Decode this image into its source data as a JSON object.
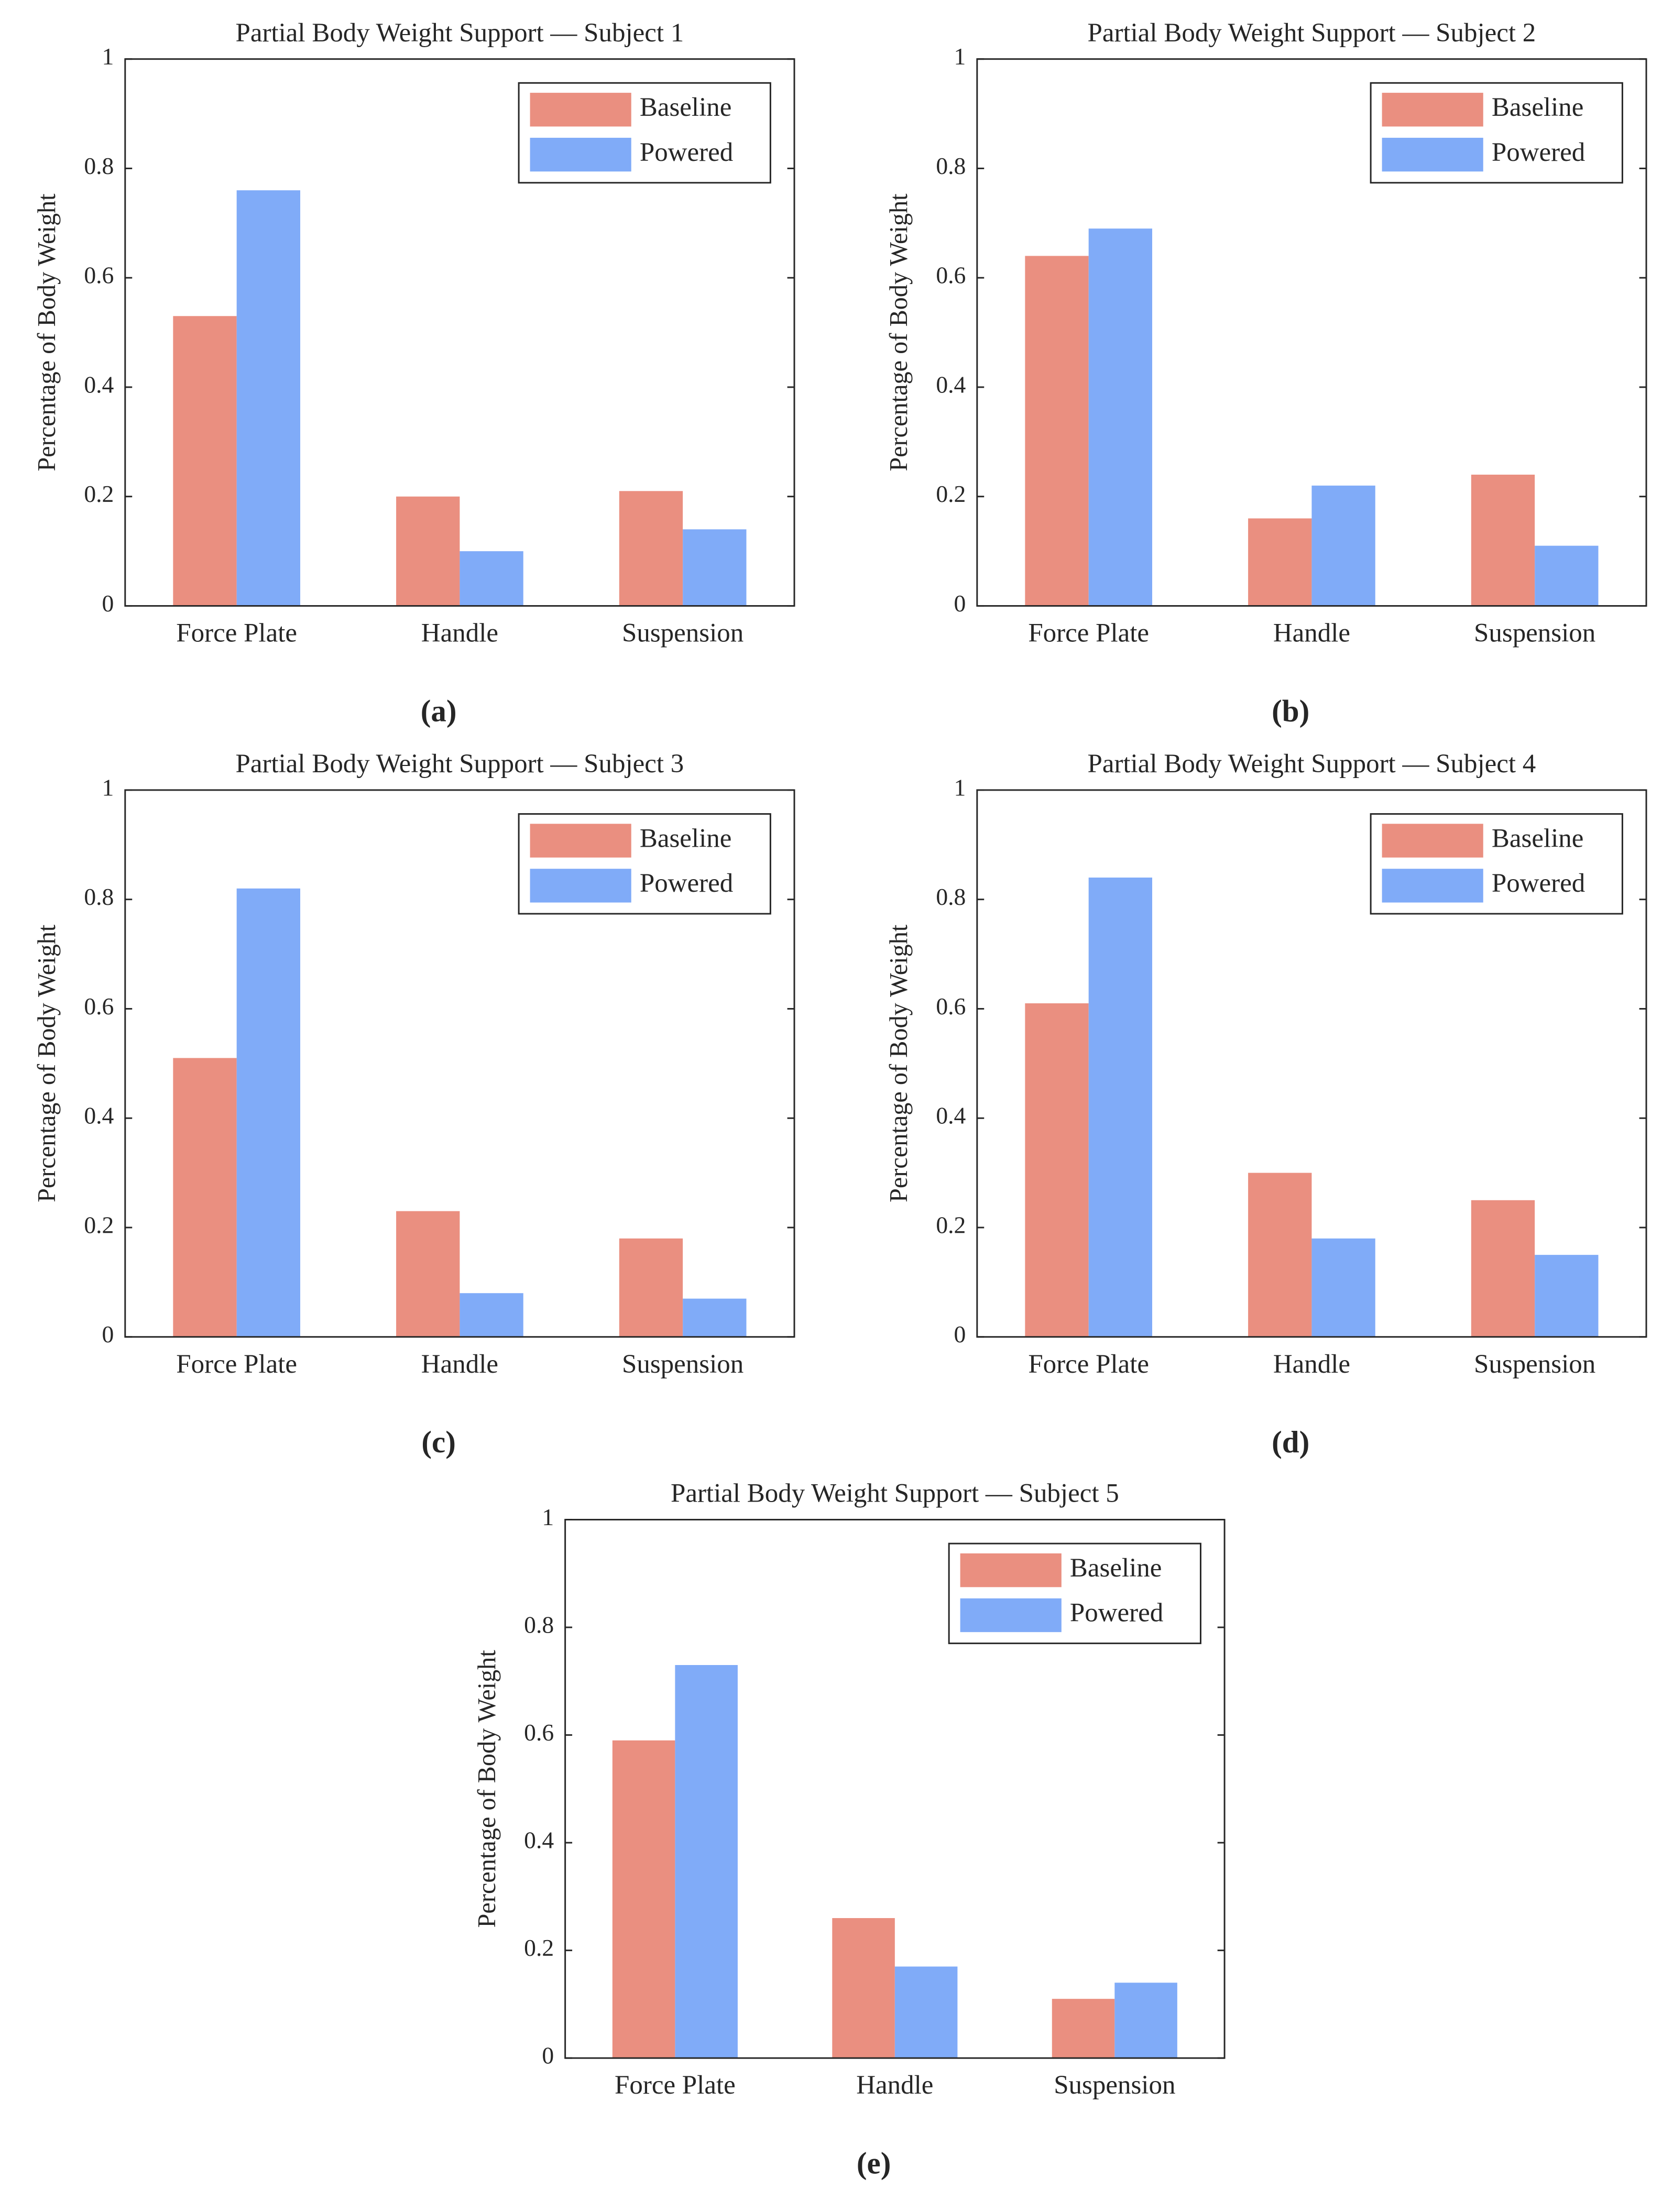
{
  "chart_data": [
    {
      "type": "bar",
      "title": "Partial Body Weight Support — Subject 1",
      "caption": "(a)",
      "ylabel": "Percentage of Body Weight",
      "categories": [
        "Force Plate",
        "Handle",
        "Suspension"
      ],
      "series": [
        {
          "name": "Baseline",
          "color": "#ea8f80",
          "values": [
            0.53,
            0.2,
            0.21
          ]
        },
        {
          "name": "Powered",
          "color": "#80abf8",
          "values": [
            0.76,
            0.1,
            0.14
          ]
        }
      ],
      "ylim": [
        0,
        1
      ],
      "yticks": [
        0,
        0.2,
        0.4,
        0.6,
        0.8,
        1
      ],
      "legend": "upper right"
    },
    {
      "type": "bar",
      "title": "Partial Body Weight Support — Subject 2",
      "caption": "(b)",
      "ylabel": "Percentage of Body Weight",
      "categories": [
        "Force Plate",
        "Handle",
        "Suspension"
      ],
      "series": [
        {
          "name": "Baseline",
          "color": "#ea8f80",
          "values": [
            0.64,
            0.16,
            0.24
          ]
        },
        {
          "name": "Powered",
          "color": "#80abf8",
          "values": [
            0.69,
            0.22,
            0.11
          ]
        }
      ],
      "ylim": [
        0,
        1
      ],
      "yticks": [
        0,
        0.2,
        0.4,
        0.6,
        0.8,
        1
      ],
      "legend": "upper right"
    },
    {
      "type": "bar",
      "title": "Partial Body Weight Support — Subject 3",
      "caption": "(c)",
      "ylabel": "Percentage of Body Weight",
      "categories": [
        "Force Plate",
        "Handle",
        "Suspension"
      ],
      "series": [
        {
          "name": "Baseline",
          "color": "#ea8f80",
          "values": [
            0.51,
            0.23,
            0.18
          ]
        },
        {
          "name": "Powered",
          "color": "#80abf8",
          "values": [
            0.82,
            0.08,
            0.07
          ]
        }
      ],
      "ylim": [
        0,
        1
      ],
      "yticks": [
        0,
        0.2,
        0.4,
        0.6,
        0.8,
        1
      ],
      "legend": "upper right"
    },
    {
      "type": "bar",
      "title": "Partial Body Weight Support — Subject 4",
      "caption": "(d)",
      "ylabel": "Percentage of Body Weight",
      "categories": [
        "Force Plate",
        "Handle",
        "Suspension"
      ],
      "series": [
        {
          "name": "Baseline",
          "color": "#ea8f80",
          "values": [
            0.61,
            0.3,
            0.25
          ]
        },
        {
          "name": "Powered",
          "color": "#80abf8",
          "values": [
            0.84,
            0.18,
            0.15
          ]
        }
      ],
      "ylim": [
        0,
        1
      ],
      "yticks": [
        0,
        0.2,
        0.4,
        0.6,
        0.8,
        1
      ],
      "legend": "upper right"
    },
    {
      "type": "bar",
      "title": "Partial Body Weight Support — Subject 5",
      "caption": "(e)",
      "ylabel": "Percentage of Body Weight",
      "categories": [
        "Force Plate",
        "Handle",
        "Suspension"
      ],
      "series": [
        {
          "name": "Baseline",
          "color": "#ea8f80",
          "values": [
            0.59,
            0.26,
            0.11
          ]
        },
        {
          "name": "Powered",
          "color": "#80abf8",
          "values": [
            0.73,
            0.17,
            0.14
          ]
        }
      ],
      "ylim": [
        0,
        1
      ],
      "yticks": [
        0,
        0.2,
        0.4,
        0.6,
        0.8,
        1
      ],
      "legend": "upper right"
    }
  ]
}
